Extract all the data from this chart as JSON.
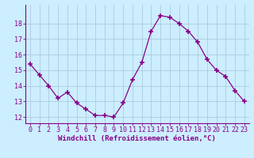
{
  "x": [
    0,
    1,
    2,
    3,
    4,
    5,
    6,
    7,
    8,
    9,
    10,
    11,
    12,
    13,
    14,
    15,
    16,
    17,
    18,
    19,
    20,
    21,
    22,
    23
  ],
  "y": [
    15.4,
    14.7,
    14.0,
    13.2,
    13.6,
    12.9,
    12.5,
    12.1,
    12.1,
    12.0,
    12.9,
    14.4,
    15.5,
    17.5,
    18.5,
    18.4,
    18.0,
    17.5,
    16.8,
    15.7,
    15.0,
    14.6,
    13.7,
    13.0
  ],
  "line_color": "#880088",
  "marker": "+",
  "marker_size": 4,
  "bg_color": "#cceeff",
  "grid_color": "#aaccdd",
  "xlabel": "Windchill (Refroidissement éolien,°C)",
  "ylabel_ticks": [
    12,
    13,
    14,
    15,
    16,
    17,
    18
  ],
  "ylim": [
    11.6,
    19.2
  ],
  "xlim": [
    -0.5,
    23.5
  ],
  "xlabel_fontsize": 6.5,
  "tick_fontsize": 6.0,
  "label_color": "#880088"
}
